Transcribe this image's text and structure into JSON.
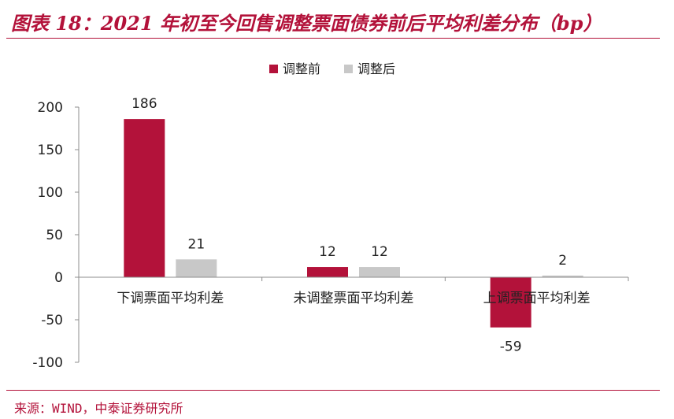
{
  "figure": {
    "title": "图表 18：2021 年初至今回售调整票面债券前后平均利差分布（bp）",
    "source": "来源：WIND，中泰证券研究所"
  },
  "colors": {
    "before": "#b3123a",
    "after": "#c8c8c8",
    "accent": "#b3123a"
  },
  "chart_data": {
    "type": "bar",
    "categories": [
      "下调票面平均利差",
      "未调整票面平均利差",
      "上调票面平均利差"
    ],
    "series": [
      {
        "name": "调整前",
        "values": [
          186,
          12,
          -59
        ]
      },
      {
        "name": "调整后",
        "values": [
          21,
          12,
          2
        ]
      }
    ],
    "ylim": [
      -100,
      200
    ],
    "yticks": [
      200,
      150,
      100,
      50,
      0,
      -50,
      -100
    ],
    "legend": "top-center",
    "grid": false,
    "data_labels": true
  }
}
